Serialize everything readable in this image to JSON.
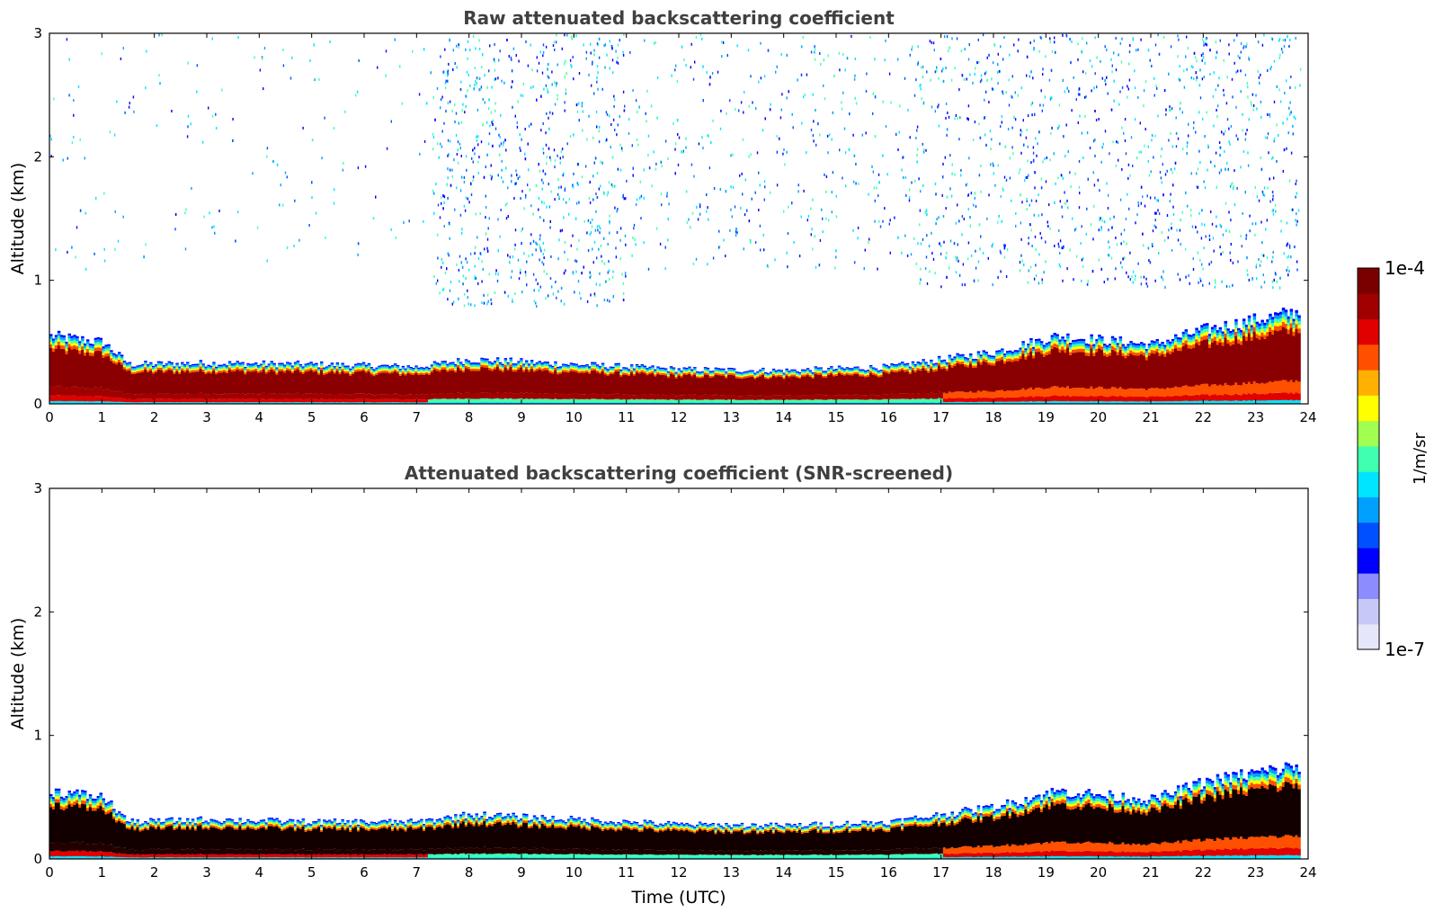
{
  "chart_data": [
    {
      "type": "heatmap",
      "title": "Raw attenuated backscattering coefficient",
      "xlabel": "",
      "ylabel": "Altitude (km)",
      "xlim": [
        0,
        24
      ],
      "ylim": [
        0,
        3
      ],
      "x_ticks": [
        "0",
        "1",
        "2",
        "3",
        "4",
        "5",
        "6",
        "7",
        "8",
        "9",
        "10",
        "11",
        "12",
        "13",
        "14",
        "15",
        "16",
        "17",
        "18",
        "19",
        "20",
        "21",
        "22",
        "23",
        "24"
      ],
      "y_ticks": [
        "0",
        "1",
        "2",
        "3"
      ],
      "layer_top_km": [
        [
          0,
          0.55
        ],
        [
          1,
          0.5
        ],
        [
          1.5,
          0.32
        ],
        [
          3,
          0.33
        ],
        [
          5,
          0.32
        ],
        [
          7,
          0.3
        ],
        [
          8,
          0.36
        ],
        [
          10,
          0.32
        ],
        [
          12,
          0.28
        ],
        [
          14,
          0.27
        ],
        [
          16,
          0.3
        ],
        [
          18,
          0.42
        ],
        [
          19.2,
          0.55
        ],
        [
          21,
          0.48
        ],
        [
          22,
          0.6
        ],
        [
          23,
          0.68
        ],
        [
          23.8,
          0.75
        ]
      ],
      "noise": true
    },
    {
      "type": "heatmap",
      "title": "Attenuated backscattering coefficient (SNR-screened)",
      "xlabel": "Time (UTC)",
      "ylabel": "Altitude (km)",
      "xlim": [
        0,
        24
      ],
      "ylim": [
        0,
        3
      ],
      "x_ticks": [
        "0",
        "1",
        "2",
        "3",
        "4",
        "5",
        "6",
        "7",
        "8",
        "9",
        "10",
        "11",
        "12",
        "13",
        "14",
        "15",
        "16",
        "17",
        "18",
        "19",
        "20",
        "21",
        "22",
        "23",
        "24"
      ],
      "y_ticks": [
        "0",
        "1",
        "2",
        "3"
      ],
      "layer_top_km": [
        [
          0,
          0.55
        ],
        [
          1,
          0.5
        ],
        [
          1.5,
          0.3
        ],
        [
          3,
          0.32
        ],
        [
          5,
          0.3
        ],
        [
          7,
          0.3
        ],
        [
          8,
          0.36
        ],
        [
          10,
          0.32
        ],
        [
          12,
          0.28
        ],
        [
          14,
          0.27
        ],
        [
          16,
          0.3
        ],
        [
          18,
          0.42
        ],
        [
          19.2,
          0.55
        ],
        [
          21,
          0.48
        ],
        [
          22,
          0.62
        ],
        [
          23,
          0.7
        ],
        [
          23.8,
          0.75
        ]
      ],
      "noise": false
    }
  ],
  "colorbar": {
    "label": "1/m/sr",
    "max_label": "1e-4",
    "min_label": "1e-7",
    "scale": "log",
    "colormap": "jet",
    "colors": [
      "#e6e6fa",
      "#c8c8f8",
      "#8c8cff",
      "#0000ff",
      "#0050ff",
      "#00a0ff",
      "#00e5ff",
      "#40ffb0",
      "#a0ff50",
      "#ffff00",
      "#ffb000",
      "#ff5000",
      "#e00000",
      "#a00000",
      "#7a0000"
    ]
  }
}
